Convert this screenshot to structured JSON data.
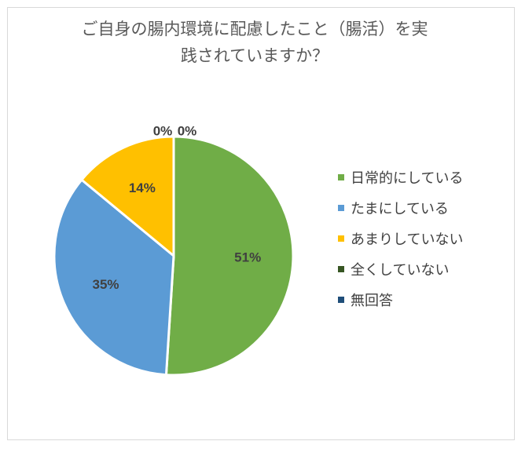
{
  "chart_data": {
    "type": "pie",
    "title_line1": "ご自身の腸内環境に配慮したこと（腸活）を実",
    "title_line2": "践されていますか？",
    "categories": [
      "日常的にしている",
      "たまにしている",
      "あまりしていない",
      "全くしていない",
      "無回答"
    ],
    "values": [
      51,
      35,
      14,
      0,
      0
    ],
    "labels": [
      "51%",
      "35%",
      "14%",
      "0%",
      "0%"
    ],
    "colors": [
      "#70ad47",
      "#5b9bd5",
      "#ffc000",
      "#375623",
      "#1f4e79"
    ],
    "legend_position": "right"
  }
}
